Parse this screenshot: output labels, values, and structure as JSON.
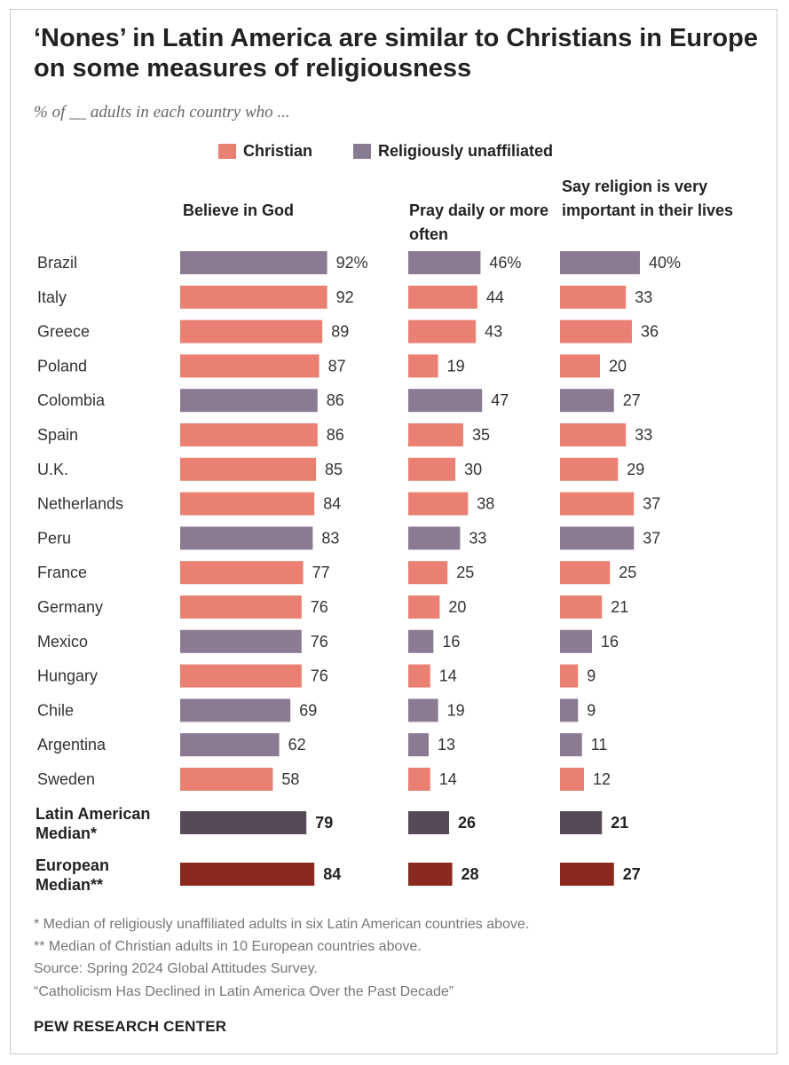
{
  "title": "‘Nones’ in Latin America are similar to Christians in Europe on some measures of religiousness",
  "subtitle": "% of __ adults in each country who ...",
  "legend": {
    "christian": "Christian",
    "unaffiliated": "Religiously unaffiliated"
  },
  "colors": {
    "christian": "#e98072",
    "unaffiliated": "#8a7a92",
    "latin_median": "#564a57",
    "european_median": "#8a2a1f"
  },
  "columns": {
    "believe_god": "Believe in God",
    "pray_daily": "Pray daily or more often",
    "religion_important": "Say religion is very important in their lives"
  },
  "chart_data": {
    "type": "bar",
    "orientation": "horizontal",
    "categories": [
      "Brazil",
      "Italy",
      "Greece",
      "Poland",
      "Colombia",
      "Spain",
      "U.K.",
      "Netherlands",
      "Peru",
      "France",
      "Germany",
      "Mexico",
      "Hungary",
      "Chile",
      "Argentina",
      "Sweden",
      "Latin American Median*",
      "European Median**"
    ],
    "group": [
      "unaffiliated",
      "christian",
      "christian",
      "christian",
      "unaffiliated",
      "christian",
      "christian",
      "christian",
      "unaffiliated",
      "christian",
      "christian",
      "unaffiliated",
      "christian",
      "unaffiliated",
      "unaffiliated",
      "christian",
      "latin_median",
      "european_median"
    ],
    "series": [
      {
        "name": "Believe in God",
        "values": [
          92,
          92,
          89,
          87,
          86,
          86,
          85,
          84,
          83,
          77,
          76,
          76,
          76,
          69,
          62,
          58,
          79,
          84
        ]
      },
      {
        "name": "Pray daily or more often",
        "values": [
          46,
          44,
          43,
          19,
          47,
          35,
          30,
          38,
          33,
          25,
          20,
          16,
          14,
          19,
          13,
          14,
          26,
          28
        ]
      },
      {
        "name": "Say religion is very important in their lives",
        "values": [
          40,
          33,
          36,
          20,
          27,
          33,
          29,
          37,
          37,
          25,
          21,
          16,
          9,
          9,
          11,
          12,
          21,
          27
        ]
      }
    ],
    "first_row_suffix": "%",
    "xlim": [
      0,
      100
    ],
    "grid": false,
    "legend_position": "top"
  },
  "footnotes": [
    "* Median of religiously unaffiliated adults in six Latin American countries above.",
    "** Median of Christian adults in 10 European countries above.",
    "Source: Spring 2024 Global Attitudes Survey.",
    "“Catholicism Has Declined in Latin America Over the Past Decade”"
  ],
  "brand": "PEW RESEARCH CENTER"
}
